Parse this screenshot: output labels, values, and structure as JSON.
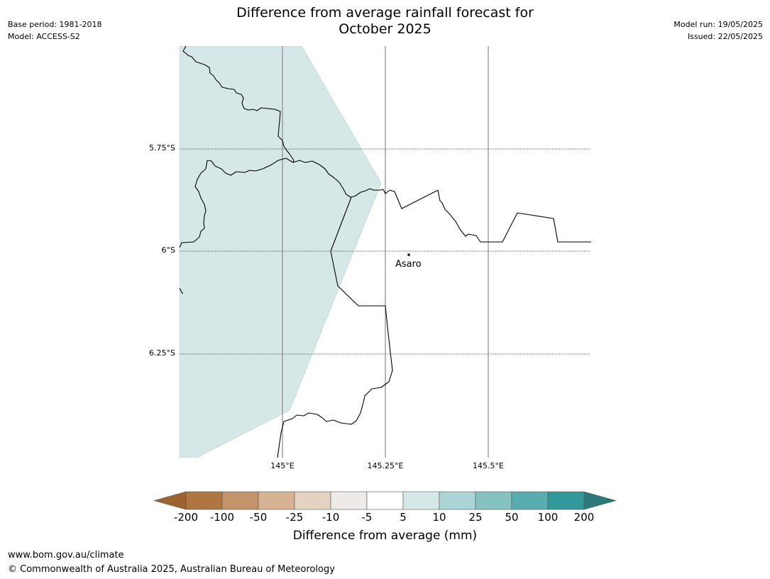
{
  "header": {
    "title_line1": "Difference from average rainfall forecast for",
    "title_line2": "October 2025",
    "base_period": "Base period: 1981-2018",
    "model": "Model: ACCESS-S2",
    "model_run": "Model run: 19/05/2025",
    "issued": "Issued: 22/05/2025"
  },
  "map": {
    "lat_labels": [
      "5.75°S",
      "6°S",
      "6.25°S"
    ],
    "lon_labels": [
      "145°E",
      "145.25°E",
      "145.5°E"
    ],
    "places": [
      {
        "name": "Asaro"
      }
    ],
    "forecast_category_shown": "5 to 10",
    "colors": {
      "forecast_fill": "#d5e8e7",
      "land_border": "#000000",
      "gridline": "#888888"
    }
  },
  "colorbar": {
    "title": "Difference from average (mm)",
    "tick_labels": [
      "-200",
      "-100",
      "-50",
      "-25",
      "-10",
      "-5",
      "5",
      "10",
      "25",
      "50",
      "100",
      "200"
    ],
    "bins": [
      {
        "range": "< -200",
        "color": "#9c6331"
      },
      {
        "range": "-200 to -100",
        "color": "#b0763f"
      },
      {
        "range": "-100 to -50",
        "color": "#c3936a"
      },
      {
        "range": "-50 to -25",
        "color": "#d6b393"
      },
      {
        "range": "-25 to -10",
        "color": "#e6d2c0"
      },
      {
        "range": "-10 to -5",
        "color": "#edeae7"
      },
      {
        "range": "-5 to 5",
        "color": "#ffffff"
      },
      {
        "range": "5 to 10",
        "color": "#d5e8e7"
      },
      {
        "range": "10 to 25",
        "color": "#acd6d6"
      },
      {
        "range": "25 to 50",
        "color": "#83c2c1"
      },
      {
        "range": "50 to 100",
        "color": "#58aeae"
      },
      {
        "range": "100 to 200",
        "color": "#32999a"
      },
      {
        "range": "> 200",
        "color": "#2b7a7a"
      }
    ]
  },
  "footer": {
    "url": "www.bom.gov.au/climate",
    "copyright": "© Commonwealth of Australia 2025, Australian Bureau of Meteorology"
  }
}
